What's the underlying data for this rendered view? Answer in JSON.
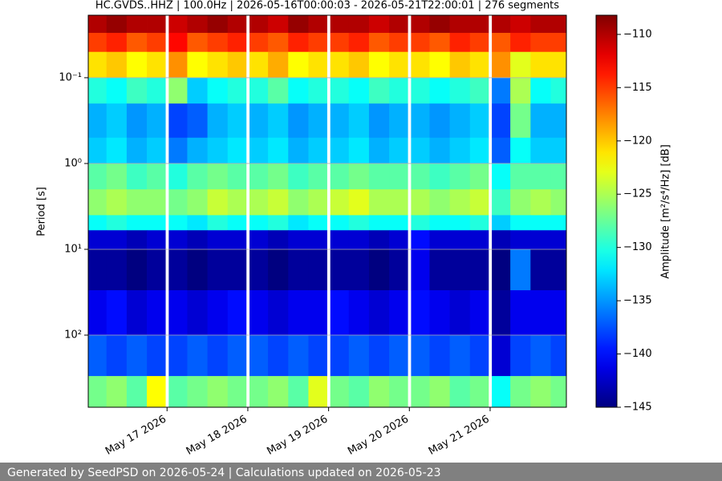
{
  "chart_data": {
    "type": "heatmap",
    "title": "HC.GVDS..HHZ | 100.0Hz | 2026-05-16T00:00:03 - 2026-05-21T22:00:01 | 276 segments",
    "y_label": "Period [s]",
    "colorbar_label": "Amplitude [m²/s⁴/Hz] [dB]",
    "footer": "Generated by SeedPSD on 2026-05-24 | Calculations updated on 2026-05-23",
    "colormap": "jet",
    "log_y": true,
    "y_inverted": true,
    "grid": true,
    "x_bins": [
      "2026-05-16T00:35",
      "2026-05-16T06:00",
      "2026-05-16T12:00",
      "2026-05-16T18:00",
      "2026-05-16T23:30",
      "2026-05-17T00:30",
      "2026-05-17T06:00",
      "2026-05-17T12:00",
      "2026-05-17T18:00",
      "2026-05-17T23:30",
      "2026-05-18T00:30",
      "2026-05-18T06:00",
      "2026-05-18T12:00",
      "2026-05-18T18:00",
      "2026-05-18T23:30",
      "2026-05-19T00:30",
      "2026-05-19T06:00",
      "2026-05-19T12:00",
      "2026-05-19T18:00",
      "2026-05-19T23:30",
      "2026-05-20T00:30",
      "2026-05-20T06:00",
      "2026-05-20T12:00",
      "2026-05-20T18:00",
      "2026-05-20T23:30",
      "2026-05-21T00:30",
      "2026-05-21T06:00",
      "2026-05-21T12:00",
      "2026-05-21T18:00",
      "2026-05-21T22:39"
    ],
    "y_bins": [
      0.0187,
      0.03,
      0.05,
      0.1,
      0.2,
      0.5,
      1,
      2,
      4,
      6,
      10,
      30,
      100,
      300,
      693
    ],
    "values": [
      [
        -110,
        -109,
        -110,
        -110,
        null,
        -111,
        -110,
        -109,
        -110,
        null,
        -110,
        -111,
        -109,
        -110,
        null,
        -110,
        -110,
        -111,
        -110,
        null,
        -110,
        -109,
        -110,
        -110,
        null,
        -110,
        -111,
        -110,
        -110
      ],
      [
        -115,
        -114,
        -116,
        -115,
        null,
        -113,
        -116,
        -115,
        -114,
        null,
        -115,
        -116,
        -114,
        -115,
        null,
        -115,
        -114,
        -116,
        -115,
        null,
        -115,
        -116,
        -114,
        -115,
        null,
        -116,
        -114,
        -115,
        -115
      ],
      [
        -121,
        -120,
        -122,
        -121,
        null,
        -118,
        -122,
        -121,
        -120,
        null,
        -121,
        -119,
        -122,
        -121,
        null,
        -121,
        -120,
        -122,
        -121,
        null,
        -121,
        -122,
        -120,
        -121,
        null,
        -118,
        -123,
        -121,
        -121
      ],
      [
        -130,
        -131,
        -129,
        -130,
        null,
        -126,
        -133,
        -131,
        -130,
        null,
        -130,
        -128,
        -131,
        -130,
        null,
        -130,
        -131,
        -129,
        -130,
        null,
        -130,
        -131,
        -130,
        -129,
        null,
        -136,
        -125,
        -131,
        -130
      ],
      [
        -134,
        -133,
        -135,
        -134,
        null,
        -138,
        -137,
        -134,
        -133,
        null,
        -134,
        -133,
        -135,
        -134,
        null,
        -134,
        -133,
        -135,
        -134,
        null,
        -134,
        -135,
        -134,
        -133,
        null,
        -138,
        -127,
        -134,
        -134
      ],
      [
        -133,
        -132,
        -134,
        -133,
        null,
        -136,
        -134,
        -133,
        -132,
        null,
        -133,
        -132,
        -134,
        -133,
        null,
        -133,
        -132,
        -134,
        -133,
        null,
        -133,
        -134,
        -133,
        -132,
        null,
        -137,
        -131,
        -133,
        -133
      ],
      [
        -128,
        -127,
        -129,
        -128,
        null,
        -130,
        -128,
        -127,
        -128,
        null,
        -128,
        -127,
        -129,
        -128,
        null,
        -128,
        -127,
        -128,
        -128,
        null,
        -128,
        -129,
        -128,
        -127,
        null,
        -131,
        -128,
        -128,
        -128
      ],
      [
        -126,
        -125,
        -126,
        -126,
        null,
        -127,
        -126,
        -124,
        -125,
        null,
        -125,
        -124,
        -126,
        -125,
        null,
        -124,
        -123,
        -125,
        -125,
        null,
        -125,
        -126,
        -125,
        -124,
        null,
        -129,
        -126,
        -125,
        -126
      ],
      [
        -131,
        -130,
        -131,
        -131,
        null,
        -131,
        -132,
        -130,
        -131,
        null,
        -131,
        -130,
        -132,
        -131,
        null,
        -131,
        -130,
        -131,
        -131,
        null,
        -130,
        -131,
        -131,
        -130,
        null,
        -133,
        -131,
        -131,
        -131
      ],
      [
        -142,
        -142,
        -143,
        -142,
        null,
        -142,
        -143,
        -142,
        -142,
        null,
        -142,
        -143,
        -142,
        -142,
        null,
        -142,
        -142,
        -143,
        -142,
        null,
        -140,
        -142,
        -142,
        -142,
        null,
        -143,
        -142,
        -142,
        -142
      ],
      [
        -144,
        -144,
        -145,
        -144,
        null,
        -144,
        -145,
        -144,
        -144,
        null,
        -144,
        -145,
        -144,
        -144,
        null,
        -144,
        -144,
        -145,
        -144,
        null,
        -141,
        -144,
        -144,
        -144,
        null,
        -145,
        -136,
        -144,
        -144
      ],
      [
        -141,
        -140,
        -142,
        -141,
        null,
        -141,
        -142,
        -141,
        -140,
        null,
        -141,
        -142,
        -141,
        -141,
        null,
        -140,
        -141,
        -142,
        -141,
        null,
        -140,
        -141,
        -142,
        -141,
        null,
        -144,
        -141,
        -141,
        -141
      ],
      [
        -137,
        -138,
        -137,
        -138,
        null,
        -138,
        -137,
        -138,
        -137,
        null,
        -137,
        -138,
        -137,
        -138,
        null,
        -138,
        -137,
        -138,
        -137,
        null,
        -137,
        -138,
        -137,
        -138,
        null,
        -142,
        -138,
        -137,
        -138
      ],
      [
        -127,
        -126,
        -128,
        -122,
        null,
        -128,
        -127,
        -126,
        -127,
        null,
        -127,
        -126,
        -128,
        -123,
        null,
        -127,
        -128,
        -126,
        -127,
        null,
        -127,
        -126,
        -128,
        -127,
        null,
        -131,
        -127,
        -126,
        -127
      ]
    ],
    "xlim": [
      "2026-05-16T00:35",
      "2026-05-21T22:39"
    ],
    "xticks": [
      {
        "value": "2026-05-17",
        "label": "May 17 2026"
      },
      {
        "value": "2026-05-18",
        "label": "May 18 2026"
      },
      {
        "value": "2026-05-19",
        "label": "May 19 2026"
      },
      {
        "value": "2026-05-20",
        "label": "May 20 2026"
      },
      {
        "value": "2026-05-21",
        "label": "May 21 2026"
      }
    ],
    "ylim": [
      0.0187,
      693
    ],
    "yticks": [
      {
        "value": 0.1,
        "label": "10⁻¹"
      },
      {
        "value": 1,
        "label": "10⁰"
      },
      {
        "value": 10,
        "label": "10¹"
      },
      {
        "value": 100,
        "label": "10²"
      }
    ],
    "clim": [
      -145,
      -108.2
    ],
    "cticks": [
      {
        "value": -110,
        "label": "−110"
      },
      {
        "value": -115,
        "label": "−115"
      },
      {
        "value": -120,
        "label": "−120"
      },
      {
        "value": -125,
        "label": "−125"
      },
      {
        "value": -130,
        "label": "−130"
      },
      {
        "value": -135,
        "label": "−135"
      },
      {
        "value": -140,
        "label": "−140"
      },
      {
        "value": -145,
        "label": "−145"
      }
    ]
  }
}
